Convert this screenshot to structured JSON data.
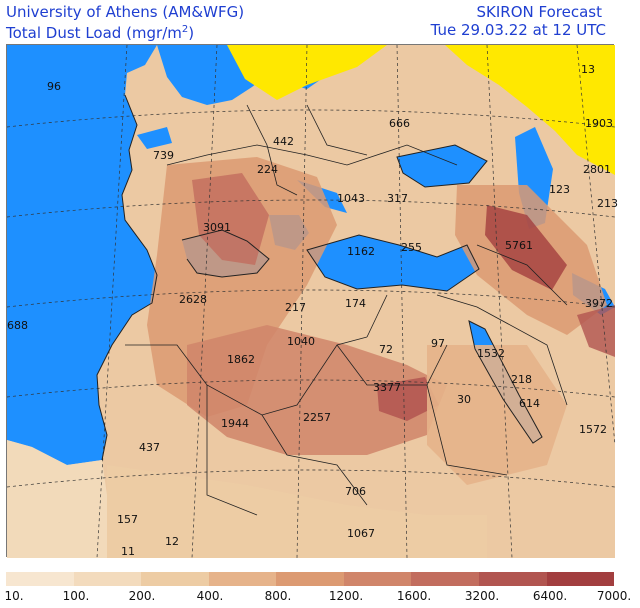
{
  "header": {
    "institution": "University of Athens (AM&WFG)",
    "variable_label": "Total Dust Load (mgr/m",
    "variable_exponent": "2",
    "variable_close": ")",
    "product": "SKIRON Forecast",
    "valid_time": "Tue 29.03.22 at 12 UTC"
  },
  "map_labels": [
    "96",
    "13",
    "666",
    "1903",
    "739",
    "442",
    "224",
    "2801",
    "123",
    "1043",
    "317",
    "213",
    "3091",
    "1162",
    "255",
    "5761",
    "2628",
    "217",
    "174",
    "3972",
    "688",
    "1040",
    "72",
    "97",
    "1532",
    "1862",
    "3377",
    "218",
    "30",
    "614",
    "1944",
    "2257",
    "1572",
    "437",
    "706",
    "157",
    "12",
    "1067",
    "11"
  ],
  "legend": {
    "tick_labels": [
      "10.",
      "100.",
      "200.",
      "400.",
      "800.",
      "1200.",
      "1600.",
      "3200.",
      "6400.",
      "7000."
    ],
    "colors": [
      "#f7e6d0",
      "#f3dbbd",
      "#edcca4",
      "#e6b38a",
      "#dc9a72",
      "#d0856a",
      "#c26d5e",
      "#b15550",
      "#a23e3f"
    ]
  },
  "colors": {
    "sea": "#1e90ff",
    "dust_free": "#ffe800",
    "title_text": "#1f3fd1"
  }
}
